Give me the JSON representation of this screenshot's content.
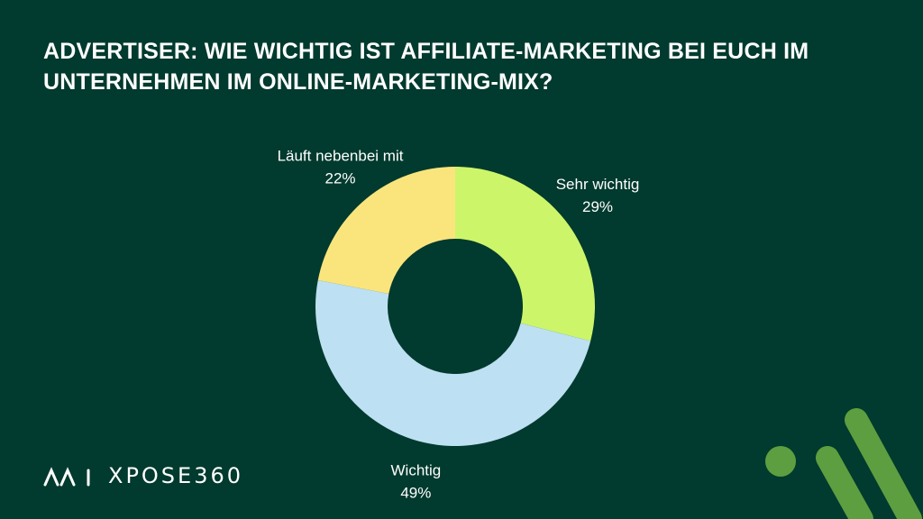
{
  "chart_data": {
    "type": "donut",
    "title": "ADVERTISER: WIE WICHTIG IST AFFILIATE-MARKETING BEI EUCH IM UNTERNEHMEN IM ONLINE-MARKETING-MIX?",
    "categories": [
      "Sehr wichtig",
      "Wichtig",
      "Läuft nebenbei mit"
    ],
    "values": [
      29,
      49,
      22
    ],
    "value_labels": [
      "29%",
      "49%",
      "22%"
    ],
    "colors": [
      "#ccf56a",
      "#bde0f2",
      "#fae57d"
    ]
  },
  "brand": {
    "logo": "XPOSE360"
  }
}
